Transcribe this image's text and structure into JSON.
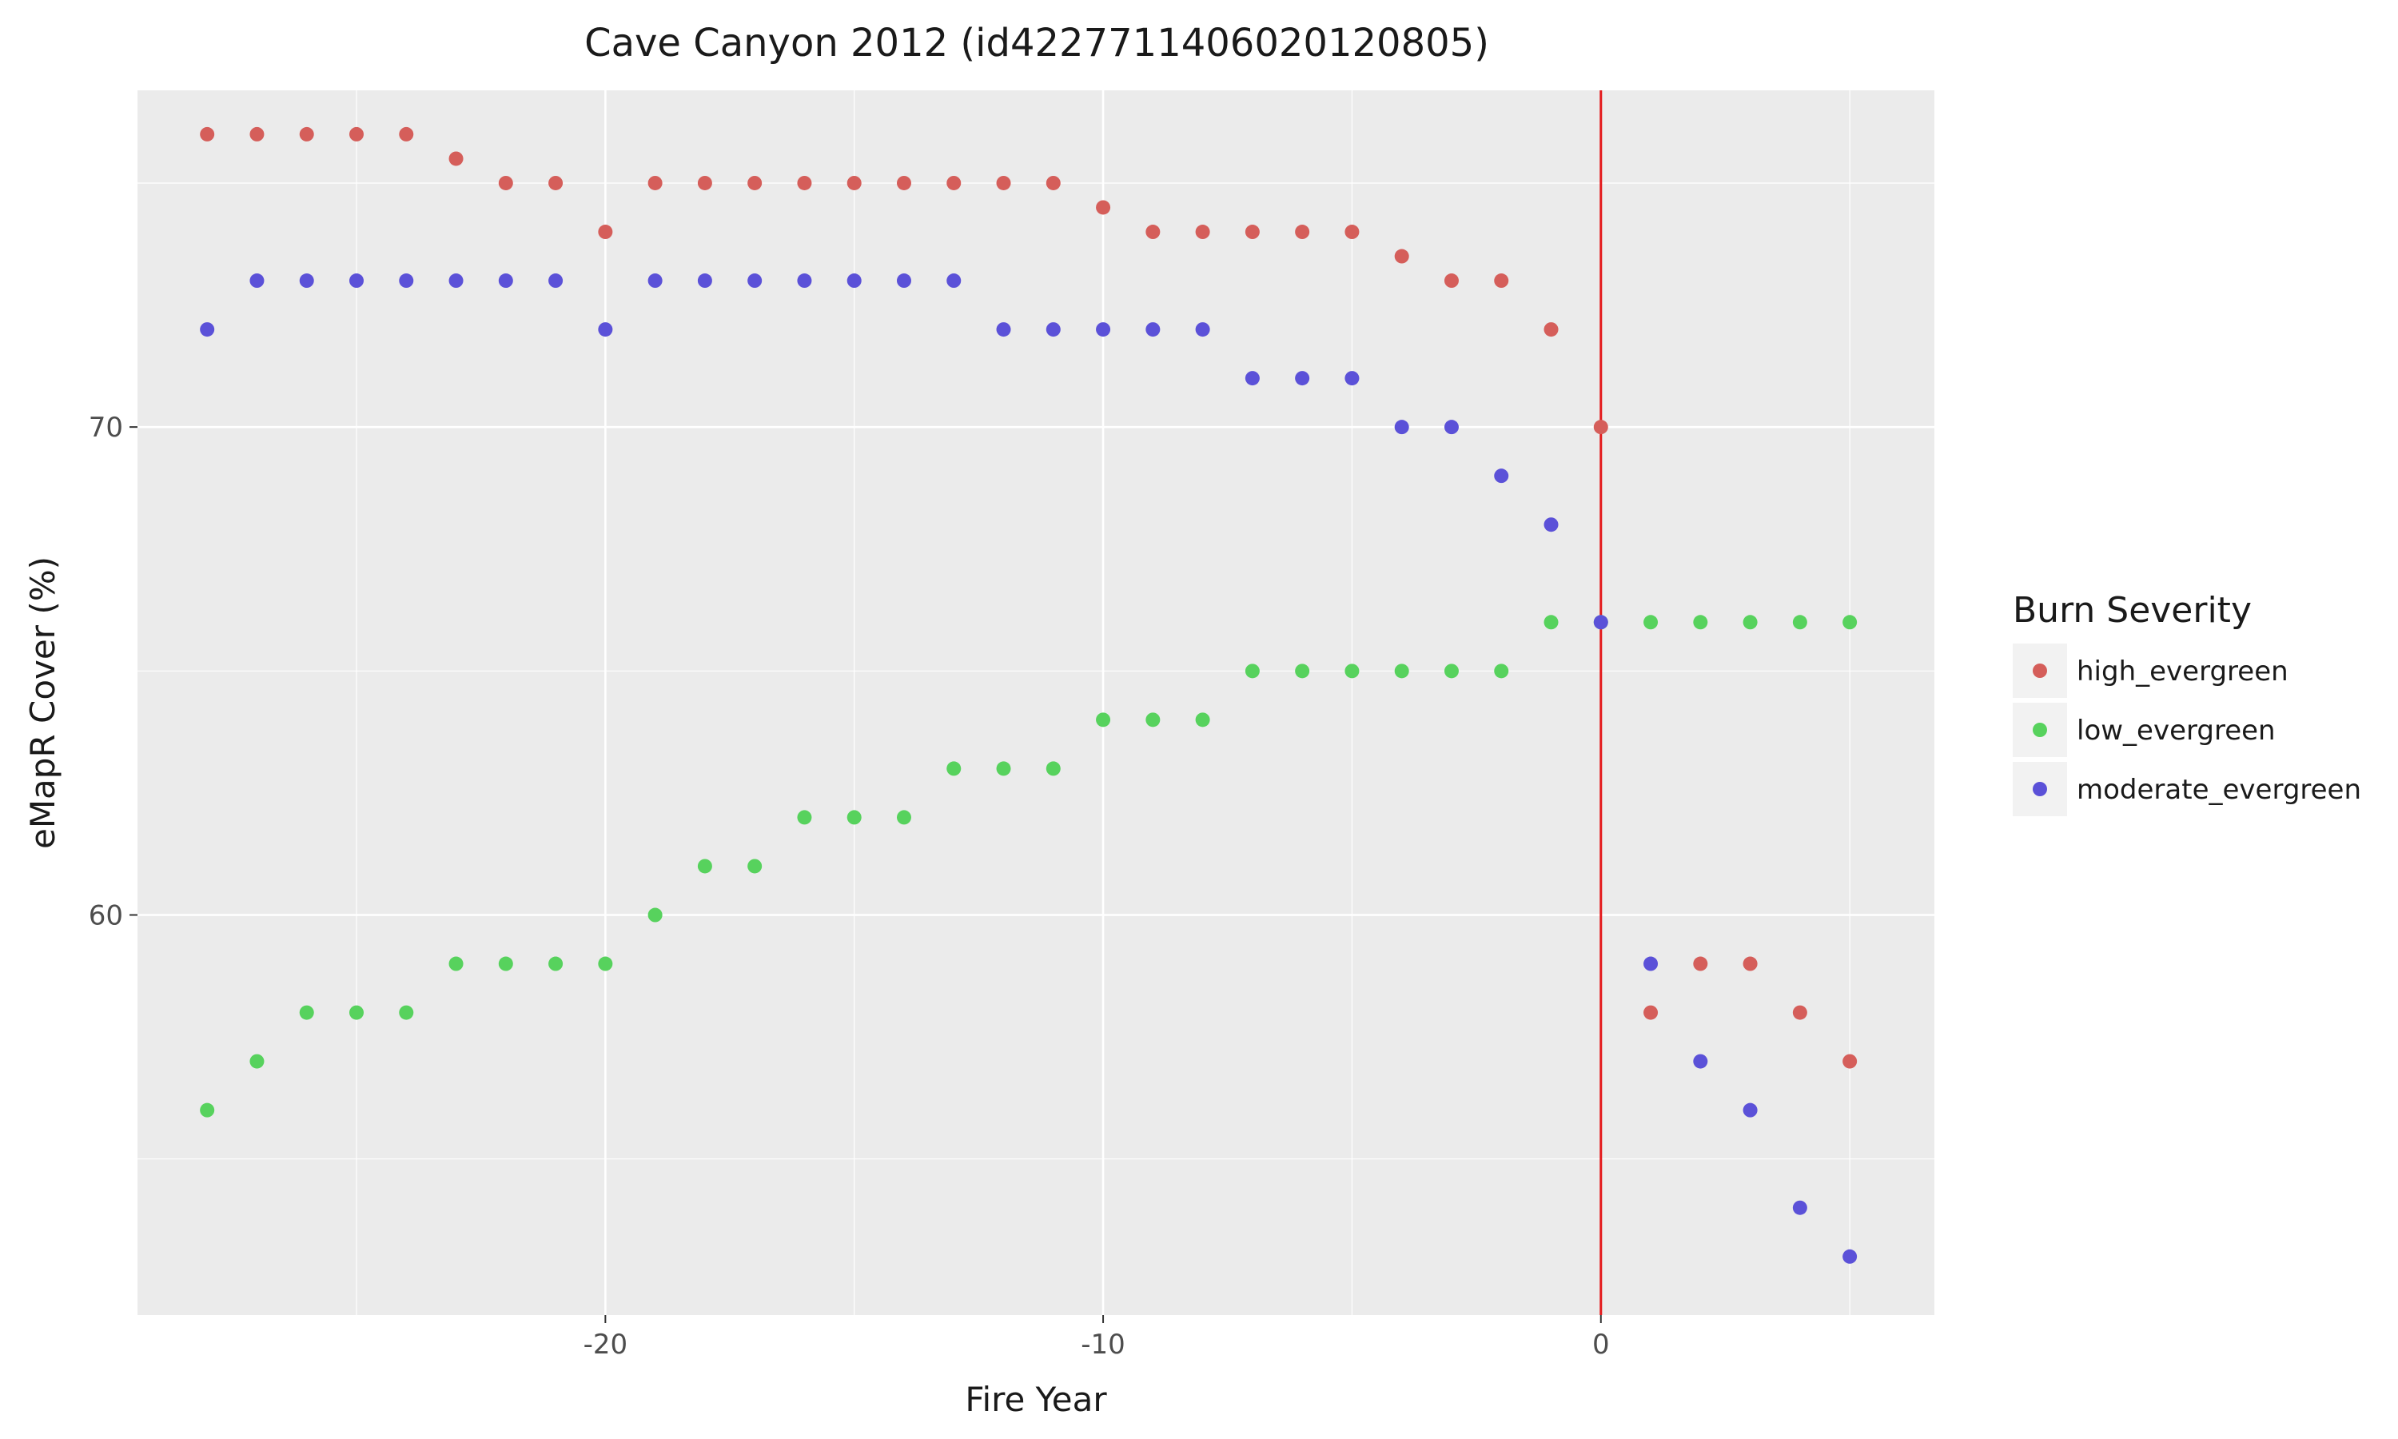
{
  "chart_data": {
    "type": "scatter",
    "title": "Cave Canyon 2012 (id4227711406020120805)",
    "xlabel": "Fire Year",
    "ylabel": "eMapR Cover (%)",
    "xlim": [
      -29.4,
      6.7
    ],
    "ylim": [
      51.8,
      76.9
    ],
    "x_ticks": [
      -20,
      -10,
      0
    ],
    "y_ticks": [
      60,
      70
    ],
    "grid": true,
    "legend": {
      "title": "Burn Severity",
      "placement": "right"
    },
    "vline": {
      "x": 0,
      "color": "#e41a1c"
    },
    "series": [
      {
        "name": "high_evergreen",
        "color": "#d55e5a",
        "x": [
          -28,
          -27,
          -26,
          -25,
          -24,
          -23,
          -22,
          -21,
          -20,
          -19,
          -18,
          -17,
          -16,
          -15,
          -14,
          -13,
          -12,
          -11,
          -10,
          -9,
          -8,
          -7,
          -6,
          -5,
          -4,
          -3,
          -2,
          -1,
          0,
          1,
          2,
          3,
          4,
          5
        ],
        "y": [
          76,
          76,
          76,
          76,
          76,
          75.5,
          75,
          75,
          74,
          75,
          75,
          75,
          75,
          75,
          75,
          75,
          75,
          75,
          74.5,
          74,
          74,
          74,
          74,
          74,
          73.5,
          73,
          73,
          72,
          70,
          58,
          59,
          59,
          58,
          57
        ]
      },
      {
        "name": "low_evergreen",
        "color": "#57d25d",
        "x": [
          -28,
          -27,
          -26,
          -25,
          -24,
          -23,
          -22,
          -21,
          -20,
          -19,
          -18,
          -17,
          -16,
          -15,
          -14,
          -13,
          -12,
          -11,
          -10,
          -9,
          -8,
          -7,
          -6,
          -5,
          -4,
          -3,
          -2,
          -1,
          0,
          1,
          2,
          3,
          4,
          5
        ],
        "y": [
          56,
          57,
          58,
          58,
          58,
          59,
          59,
          59,
          59,
          60,
          61,
          61,
          62,
          62,
          62,
          63,
          63,
          63,
          64,
          64,
          64,
          65,
          65,
          65,
          65,
          65,
          65,
          66,
          66,
          66,
          66,
          66,
          66,
          66
        ]
      },
      {
        "name": "moderate_evergreen",
        "color": "#5b51d8",
        "x": [
          -28,
          -27,
          -26,
          -25,
          -24,
          -23,
          -22,
          -21,
          -20,
          -19,
          -18,
          -17,
          -16,
          -15,
          -14,
          -13,
          -12,
          -11,
          -10,
          -9,
          -8,
          -7,
          -6,
          -5,
          -4,
          -3,
          -2,
          -1,
          0,
          1,
          2,
          3,
          4,
          5
        ],
        "y": [
          72,
          73,
          73,
          73,
          73,
          73,
          73,
          73,
          72,
          73,
          73,
          73,
          73,
          73,
          73,
          73,
          72,
          72,
          72,
          72,
          72,
          71,
          71,
          71,
          70,
          70,
          69,
          68,
          66,
          59,
          57,
          56,
          54,
          53
        ]
      }
    ]
  }
}
